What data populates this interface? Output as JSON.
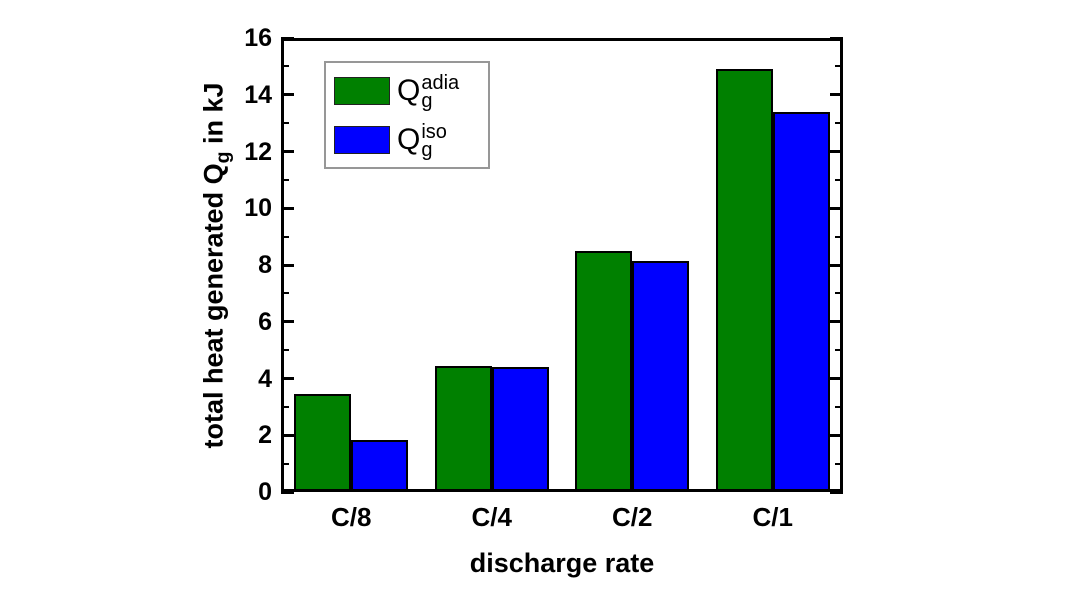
{
  "chart_data": {
    "type": "bar",
    "title": "",
    "categories": [
      "C/8",
      "C/4",
      "C/2",
      "C/1"
    ],
    "series": [
      {
        "name": "Qg-adia",
        "label": {
          "base": "Q",
          "sub": "g",
          "sup": "adia"
        },
        "color": "#008000",
        "values": [
          3.45,
          4.45,
          8.5,
          14.9
        ]
      },
      {
        "name": "Qg-iso",
        "label": {
          "base": "Q",
          "sub": "g",
          "sup": "iso"
        },
        "color": "#0000ff",
        "values": [
          1.85,
          4.4,
          8.15,
          13.4
        ]
      }
    ],
    "xlabel": "discharge rate",
    "ylabel": {
      "prefix": "total heat generated Q",
      "sub": "g",
      "suffix": " in kJ"
    },
    "ylim": [
      0,
      16
    ],
    "ytick_step": 2,
    "yminor_step": 1,
    "ytick_labels": [
      "0",
      "2",
      "4",
      "6",
      "8",
      "10",
      "12",
      "14",
      "16"
    ],
    "grid": false,
    "legend_position": "top-left-inside",
    "axis_color": "#000000",
    "background_color": "#ffffff"
  }
}
